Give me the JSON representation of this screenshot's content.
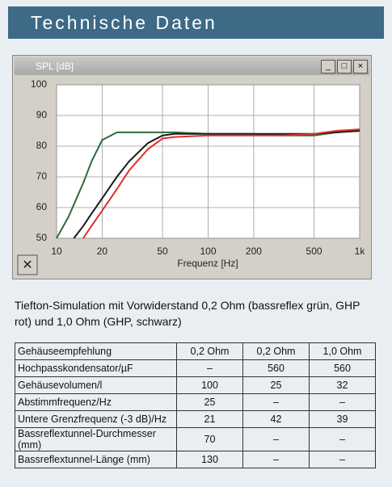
{
  "header": {
    "title": "Technische Daten"
  },
  "chart_data": {
    "type": "line",
    "window_title": "SPL [dB]",
    "xlabel": "Frequenz [Hz]",
    "log_x": true,
    "grid": true,
    "x": [
      10,
      12,
      13,
      15,
      17,
      20,
      25,
      30,
      40,
      50,
      60,
      100,
      200,
      300,
      500,
      700,
      1000
    ],
    "series": [
      {
        "color": "#2e6b3c",
        "values": [
          50,
          57,
          61,
          68,
          75,
          82,
          84.5,
          84.5,
          84.5,
          84.5,
          84.5,
          84,
          84,
          83.5,
          83.5,
          84.5,
          85
        ]
      },
      {
        "color": "#1a1a1a",
        "values": [
          null,
          null,
          50,
          54,
          58,
          63,
          70,
          75,
          81,
          83.5,
          84,
          84,
          84,
          84,
          84,
          84.5,
          85
        ]
      },
      {
        "color": "#e0302a",
        "values": [
          null,
          null,
          null,
          50,
          54,
          59,
          66,
          72,
          79,
          82.5,
          83,
          83.5,
          83.5,
          83.5,
          84,
          85,
          85.5
        ]
      }
    ],
    "xlim": [
      10,
      1000
    ],
    "ylim": [
      50,
      100
    ],
    "xticks": [
      10,
      20,
      50,
      100,
      200,
      500,
      {
        "value": 1000,
        "label": "1k"
      }
    ],
    "yticks": [
      50,
      60,
      70,
      80,
      90,
      100
    ]
  },
  "caption": "Tiefton-Simulation mit Vorwiderstand 0,2 Ohm (bassreflex grün, GHP rot) und 1,0 Ohm (GHP, schwarz)",
  "table": {
    "rows": [
      [
        "Gehäuseempfehlung",
        "0,2 Ohm",
        "0,2 Ohm",
        "1,0 Ohm"
      ],
      [
        "Hochpasskondensator/µF",
        "–",
        "560",
        "560"
      ],
      [
        "Gehäusevolumen/l",
        "100",
        "25",
        "32"
      ],
      [
        "Abstimmfrequenz/Hz",
        "25",
        "–",
        "–"
      ],
      [
        "Untere Grenzfrequenz (-3 dB)/Hz",
        "21",
        "42",
        "39"
      ],
      [
        "Bassreflextunnel-Durchmesser (mm)",
        "70",
        "–",
        "–"
      ],
      [
        "Bassreflextunnel-Länge (mm)",
        "130",
        "–",
        "–"
      ]
    ]
  }
}
